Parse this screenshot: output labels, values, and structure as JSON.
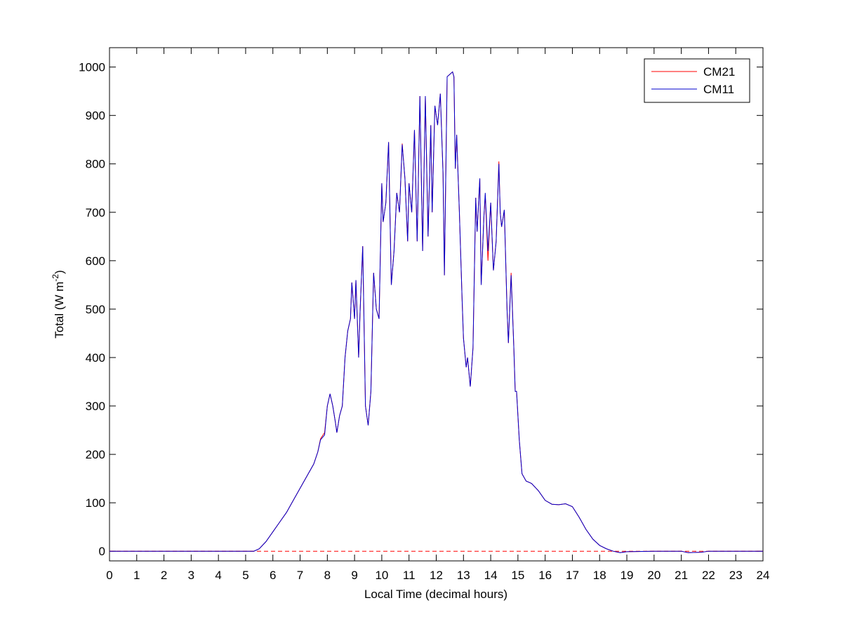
{
  "chart_data": {
    "type": "line",
    "xlabel": "Local Time (decimal hours)",
    "ylabel": {
      "text": "Total (W m",
      "superscript": "-2",
      "tail": ")"
    },
    "xlim": [
      0,
      24
    ],
    "xticks": [
      0,
      1,
      2,
      3,
      4,
      5,
      6,
      7,
      8,
      9,
      10,
      11,
      12,
      13,
      14,
      15,
      16,
      17,
      18,
      19,
      20,
      21,
      22,
      23,
      24
    ],
    "ylim": [
      -20,
      1040
    ],
    "yticks": [
      0,
      100,
      200,
      300,
      400,
      500,
      600,
      700,
      800,
      900,
      1000
    ],
    "legend": "northeast",
    "grid": false,
    "reference_line": {
      "y": 0,
      "color": "#ff0000",
      "style": "dashed"
    },
    "x": [
      0,
      5,
      5.3,
      5.5,
      5.75,
      6,
      6.25,
      6.5,
      6.75,
      7,
      7.25,
      7.5,
      7.65,
      7.75,
      7.9,
      8,
      8.1,
      8.2,
      8.3,
      8.35,
      8.45,
      8.55,
      8.65,
      8.75,
      8.85,
      8.9,
      9,
      9.05,
      9.15,
      9.2,
      9.3,
      9.4,
      9.5,
      9.6,
      9.7,
      9.8,
      9.9,
      10,
      10.05,
      10.15,
      10.25,
      10.35,
      10.45,
      10.55,
      10.65,
      10.75,
      10.85,
      10.95,
      11,
      11.1,
      11.2,
      11.3,
      11.4,
      11.5,
      11.6,
      11.7,
      11.8,
      11.85,
      11.95,
      12.05,
      12.15,
      12.25,
      12.3,
      12.4,
      12.5,
      12.6,
      12.65,
      12.7,
      12.75,
      12.85,
      12.95,
      13,
      13.1,
      13.15,
      13.25,
      13.35,
      13.45,
      13.5,
      13.6,
      13.65,
      13.75,
      13.8,
      13.9,
      14,
      14.1,
      14.2,
      14.3,
      14.35,
      14.4,
      14.5,
      14.6,
      14.65,
      14.75,
      14.85,
      14.9,
      14.95,
      15.05,
      15.15,
      15.3,
      15.5,
      15.75,
      16,
      16.25,
      16.5,
      16.75,
      17,
      17.25,
      17.5,
      17.75,
      18,
      18.25,
      18.5,
      18.75,
      19,
      20,
      21,
      21.25,
      21.75,
      22,
      24
    ],
    "series": [
      {
        "name": "CM21",
        "color": "#ff0000",
        "values": [
          0,
          0,
          0,
          5,
          20,
          40,
          60,
          80,
          105,
          130,
          155,
          180,
          205,
          232,
          245,
          300,
          325,
          300,
          265,
          245,
          280,
          300,
          400,
          455,
          480,
          555,
          480,
          560,
          400,
          490,
          630,
          300,
          260,
          330,
          575,
          500,
          480,
          760,
          680,
          720,
          845,
          550,
          620,
          740,
          700,
          842,
          770,
          640,
          760,
          700,
          870,
          640,
          940,
          620,
          940,
          650,
          880,
          700,
          920,
          880,
          945,
          780,
          570,
          980,
          985,
          990,
          980,
          790,
          860,
          700,
          520,
          440,
          380,
          400,
          340,
          420,
          730,
          660,
          770,
          550,
          690,
          735,
          600,
          720,
          580,
          640,
          805,
          700,
          670,
          705,
          500,
          430,
          575,
          420,
          330,
          330,
          230,
          160,
          145,
          140,
          125,
          105,
          97,
          96,
          98,
          92,
          70,
          45,
          25,
          12,
          5,
          0,
          -3,
          -1,
          0,
          0,
          -3,
          -2,
          0,
          0
        ]
      },
      {
        "name": "CM11",
        "color": "#0000cc",
        "values": [
          0,
          0,
          0,
          5,
          20,
          40,
          60,
          80,
          105,
          130,
          155,
          180,
          205,
          230,
          240,
          300,
          325,
          300,
          265,
          245,
          280,
          300,
          400,
          455,
          480,
          555,
          480,
          560,
          400,
          490,
          630,
          300,
          260,
          330,
          575,
          500,
          480,
          760,
          680,
          720,
          845,
          550,
          620,
          740,
          700,
          840,
          770,
          640,
          760,
          700,
          870,
          640,
          940,
          620,
          940,
          650,
          880,
          700,
          920,
          880,
          945,
          780,
          570,
          980,
          985,
          990,
          980,
          790,
          860,
          700,
          520,
          440,
          380,
          400,
          340,
          420,
          730,
          660,
          770,
          550,
          690,
          740,
          620,
          720,
          580,
          640,
          800,
          700,
          670,
          705,
          500,
          430,
          570,
          420,
          330,
          330,
          230,
          160,
          145,
          140,
          125,
          105,
          97,
          96,
          98,
          92,
          70,
          45,
          25,
          12,
          5,
          0,
          -3,
          -1,
          0,
          0,
          -3,
          -2,
          0,
          0
        ]
      }
    ]
  }
}
